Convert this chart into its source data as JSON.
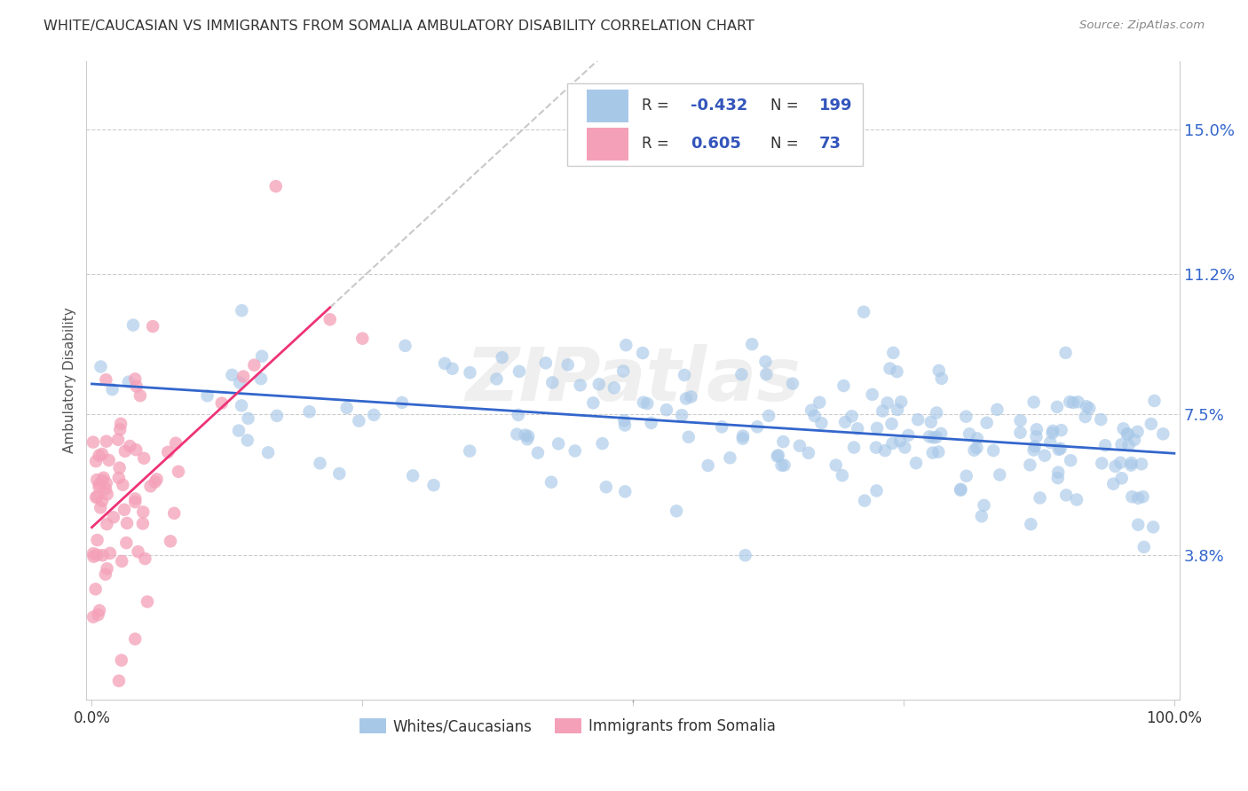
{
  "title": "WHITE/CAUCASIAN VS IMMIGRANTS FROM SOMALIA AMBULATORY DISABILITY CORRELATION CHART",
  "source": "Source: ZipAtlas.com",
  "ylabel": "Ambulatory Disability",
  "yticks": [
    0.038,
    0.075,
    0.112,
    0.15
  ],
  "ytick_labels": [
    "3.8%",
    "7.5%",
    "11.2%",
    "15.0%"
  ],
  "blue_R": -0.432,
  "blue_N": 199,
  "pink_R": 0.605,
  "pink_N": 73,
  "blue_color": "#a8c8e8",
  "pink_color": "#f4a0b8",
  "blue_line_color": "#3366cc",
  "pink_line_color": "#ee3377",
  "gray_dash_color": "#bbbbbb",
  "background_color": "#ffffff",
  "grid_color": "#cccccc",
  "watermark": "ZIPatlas",
  "legend_label_blue": "Whites/Caucasians",
  "legend_label_pink": "Immigrants from Somalia",
  "legend_blue_swatch": "#a8c8e8",
  "legend_pink_swatch": "#f4a0b8",
  "legend_R_color": "#333333",
  "legend_val_color": "#3355bb"
}
